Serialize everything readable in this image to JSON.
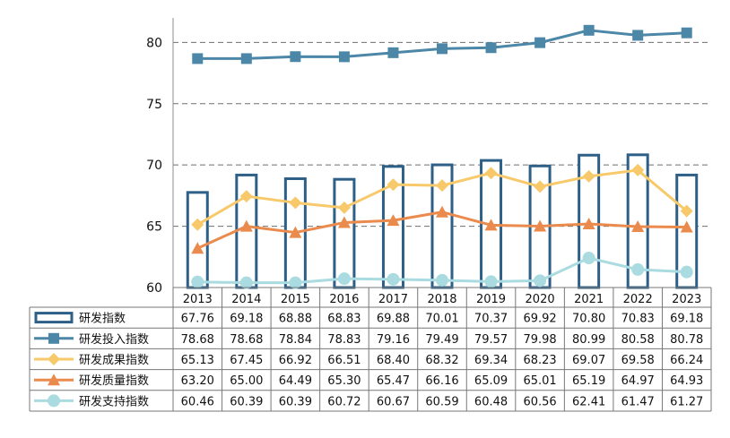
{
  "chart_data": {
    "type": "bar+line",
    "categories": [
      "2013",
      "2014",
      "2015",
      "2016",
      "2017",
      "2018",
      "2019",
      "2020",
      "2021",
      "2022",
      "2023"
    ],
    "ylim": [
      60,
      82
    ],
    "yticks": [
      "60",
      "65",
      "70",
      "75",
      "80"
    ],
    "grid": "dashed horizontal",
    "legend": "embedded in data table below chart",
    "series": [
      {
        "name": "研发指数",
        "kind": "bar",
        "color": "#2e5f87",
        "values": [
          67.76,
          69.18,
          68.88,
          68.83,
          69.88,
          70.01,
          70.37,
          69.92,
          70.8,
          70.83,
          69.18
        ],
        "labels": [
          "67.76",
          "69.18",
          "68.88",
          "68.83",
          "69.88",
          "70.01",
          "70.37",
          "69.92",
          "70.80",
          "70.83",
          "69.18"
        ]
      },
      {
        "name": "研发投入指数",
        "kind": "line",
        "marker": "square",
        "color": "#4c87a8",
        "values": [
          78.68,
          78.68,
          78.84,
          78.83,
          79.16,
          79.49,
          79.57,
          79.98,
          80.99,
          80.58,
          80.78
        ],
        "labels": [
          "78.68",
          "78.68",
          "78.84",
          "78.83",
          "79.16",
          "79.49",
          "79.57",
          "79.98",
          "80.99",
          "80.58",
          "80.78"
        ]
      },
      {
        "name": "研发成果指数",
        "kind": "line",
        "marker": "diamond",
        "color": "#f8c96a",
        "values": [
          65.13,
          67.45,
          66.92,
          66.51,
          68.4,
          68.32,
          69.34,
          68.23,
          69.07,
          69.58,
          66.24
        ],
        "labels": [
          "65.13",
          "67.45",
          "66.92",
          "66.51",
          "68.40",
          "68.32",
          "69.34",
          "68.23",
          "69.07",
          "69.58",
          "66.24"
        ]
      },
      {
        "name": "研发质量指数",
        "kind": "line",
        "marker": "triangle",
        "color": "#ea8a4c",
        "values": [
          63.2,
          65.0,
          64.49,
          65.3,
          65.47,
          66.16,
          65.09,
          65.01,
          65.19,
          64.97,
          64.93
        ],
        "labels": [
          "63.20",
          "65.00",
          "64.49",
          "65.30",
          "65.47",
          "66.16",
          "65.09",
          "65.01",
          "65.19",
          "64.97",
          "64.93"
        ]
      },
      {
        "name": "研发支持指数",
        "kind": "line",
        "marker": "circle",
        "color": "#a9dbe0",
        "values": [
          60.46,
          60.39,
          60.39,
          60.72,
          60.67,
          60.59,
          60.48,
          60.56,
          62.41,
          61.47,
          61.27
        ],
        "labels": [
          "60.46",
          "60.39",
          "60.39",
          "60.72",
          "60.67",
          "60.59",
          "60.48",
          "60.56",
          "62.41",
          "61.47",
          "61.27"
        ]
      }
    ]
  }
}
